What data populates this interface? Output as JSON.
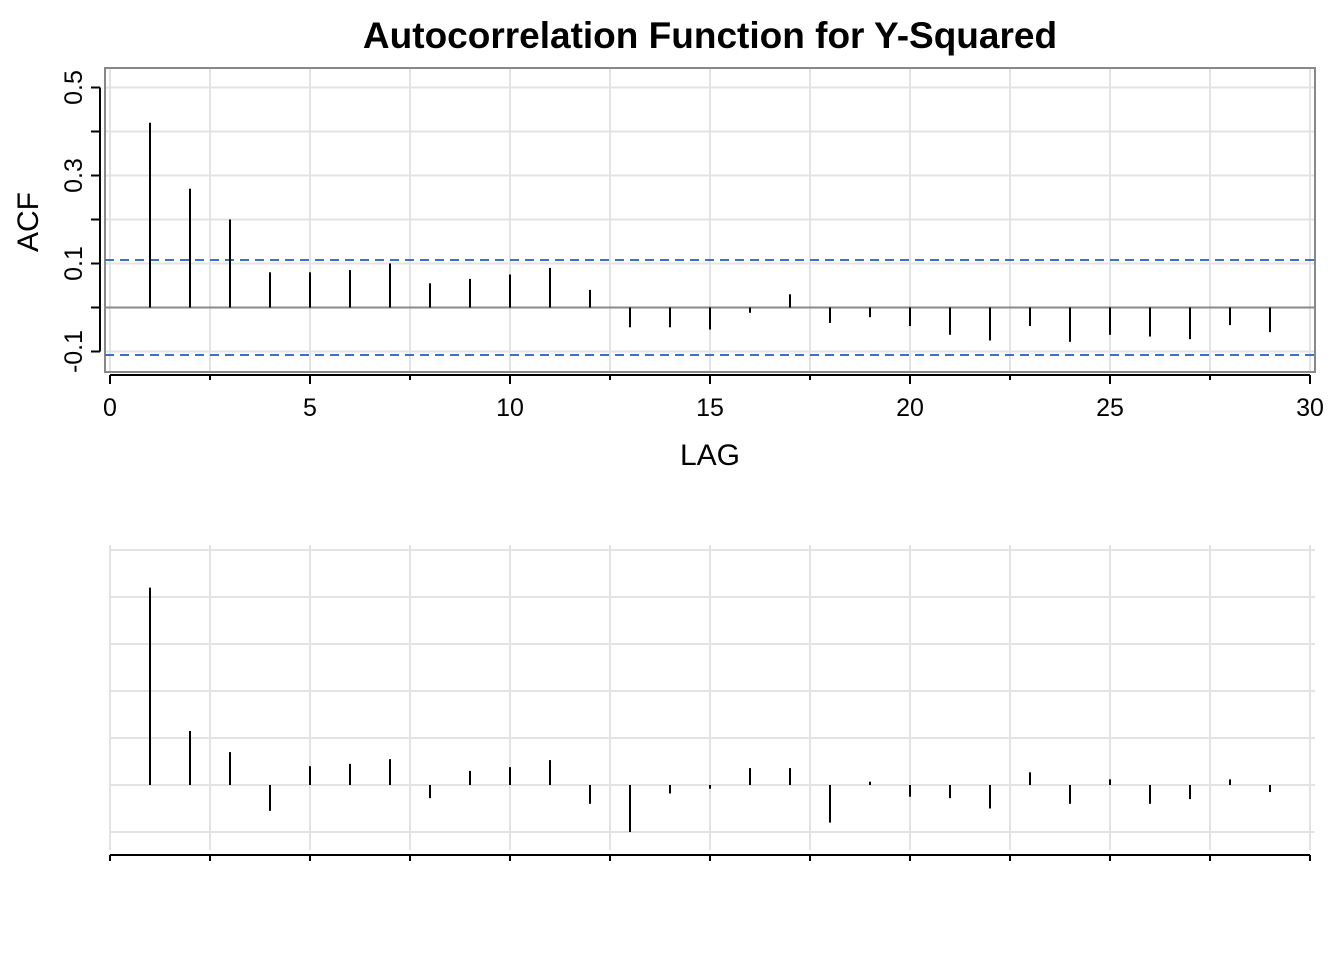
{
  "chart_data": [
    {
      "type": "bar",
      "title": "Autocorrelation Function for Y-Squared",
      "xlabel": "LAG",
      "ylabel": "ACF",
      "xlim": [
        0,
        30
      ],
      "ylim": [
        -0.15,
        0.55
      ],
      "x_ticks": [
        0,
        5,
        10,
        15,
        20,
        25,
        30
      ],
      "x_tick_labels": [
        "0",
        "5",
        "10",
        "15",
        "20",
        "25",
        "30"
      ],
      "y_ticks": [
        -0.1,
        0.1,
        0.3,
        0.5
      ],
      "y_tick_labels": [
        "-0.1",
        "0.1",
        "0.3",
        "0.5"
      ],
      "y_minor_ticks": [
        0,
        0.2,
        0.4
      ],
      "confidence_bound": 0.108,
      "grid": true,
      "lags": [
        1,
        2,
        3,
        4,
        5,
        6,
        7,
        8,
        9,
        10,
        11,
        12,
        13,
        14,
        15,
        16,
        17,
        18,
        19,
        20,
        21,
        22,
        23,
        24,
        25,
        26,
        27,
        28,
        29
      ],
      "values": [
        0.42,
        0.27,
        0.2,
        0.08,
        0.08,
        0.085,
        0.1,
        0.055,
        0.065,
        0.075,
        0.09,
        0.04,
        -0.045,
        -0.045,
        -0.05,
        -0.012,
        0.03,
        -0.035,
        -0.022,
        -0.042,
        -0.062,
        -0.075,
        -0.042,
        -0.078,
        -0.062,
        -0.066,
        -0.072,
        -0.04,
        -0.056
      ]
    },
    {
      "type": "bar",
      "title": "",
      "xlabel": "",
      "ylabel": "",
      "xlim": [
        0,
        30
      ],
      "ylim": [
        -0.15,
        0.55
      ],
      "grid": true,
      "lags": [
        1,
        2,
        3,
        4,
        5,
        6,
        7,
        8,
        9,
        10,
        11,
        12,
        13,
        14,
        15,
        16,
        17,
        18,
        19,
        20,
        21,
        22,
        23,
        24,
        25,
        26,
        27,
        28,
        29
      ],
      "values": [
        0.42,
        0.115,
        0.07,
        -0.055,
        0.04,
        0.045,
        0.055,
        -0.028,
        0.03,
        0.038,
        0.053,
        -0.04,
        -0.1,
        -0.018,
        -0.008,
        0.036,
        0.036,
        -0.08,
        0.007,
        -0.025,
        -0.028,
        -0.05,
        0.027,
        -0.04,
        0.012,
        -0.04,
        -0.03,
        0.012,
        -0.015
      ]
    }
  ]
}
